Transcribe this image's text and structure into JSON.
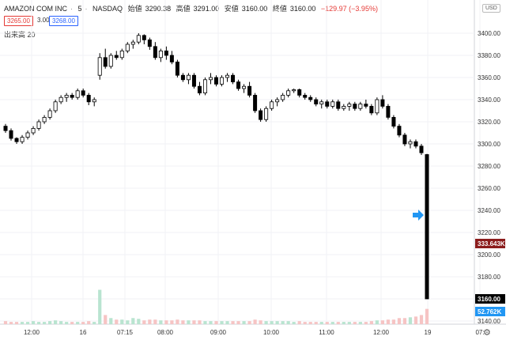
{
  "header": {
    "symbol": "AMAZON COM INC",
    "interval": "5",
    "exchange": "NASDAQ",
    "open_label": "始値",
    "open": "3290.38",
    "high_label": "高値",
    "high": "3291.00",
    "low_label": "安値",
    "low": "3160.00",
    "close_label": "終値",
    "close": "3160.00",
    "change": "−129.97 (−3.95%)",
    "bid": "3265.00",
    "spread": "3.00",
    "ask": "3268.00",
    "volume_label": "出来高",
    "volume_length": "20",
    "currency_button": "USD"
  },
  "colors": {
    "up_candle": "#ffffff",
    "down_candle": "#000000",
    "volume_up": "#b9e4d0",
    "volume_down": "#f6c4c4",
    "last_price_bg": "#000000",
    "volume_badge_bg": "#8b1c1c",
    "volume_ma_badge_bg": "#2196f3",
    "arrow": "#2196f3"
  },
  "icons": {
    "settings": "gear-icon",
    "marker": "arrow-right-icon"
  },
  "chart_data": {
    "type": "candlestick",
    "title": "AMAZON COM INC · 5 · NASDAQ",
    "y_ticks": [
      "3400.00",
      "3380.00",
      "3360.00",
      "3340.00",
      "3320.00",
      "3300.00",
      "3280.00",
      "3260.00",
      "3240.00",
      "3220.00",
      "3200.00",
      "3180.00",
      "3160.00",
      "3140.00"
    ],
    "x_ticks": [
      "12:00",
      "16",
      "07:15",
      "08:00",
      "09:00",
      "10:00",
      "11:00",
      "12:00",
      "19",
      "07:"
    ],
    "last_price_label": "3160.00",
    "volume_label": "333.643K",
    "volume_ma_label": "52.762K",
    "ylim": [
      3135,
      3407
    ],
    "grid": true,
    "candles": [
      [
        3316,
        3318,
        3310,
        3312
      ],
      [
        3312,
        3314,
        3303,
        3305
      ],
      [
        3305,
        3306,
        3300,
        3302
      ],
      [
        3302,
        3308,
        3300,
        3306
      ],
      [
        3306,
        3312,
        3304,
        3310
      ],
      [
        3310,
        3316,
        3308,
        3314
      ],
      [
        3314,
        3322,
        3312,
        3320
      ],
      [
        3320,
        3326,
        3318,
        3324
      ],
      [
        3324,
        3332,
        3322,
        3330
      ],
      [
        3330,
        3340,
        3328,
        3338
      ],
      [
        3338,
        3344,
        3336,
        3342
      ],
      [
        3342,
        3346,
        3338,
        3344
      ],
      [
        3344,
        3346,
        3340,
        3342
      ],
      [
        3342,
        3350,
        3340,
        3348
      ],
      [
        3348,
        3350,
        3342,
        3344
      ],
      [
        3344,
        3346,
        3335,
        3338
      ],
      [
        3338,
        3342,
        3334,
        3340
      ],
      [
        3362,
        3382,
        3358,
        3378
      ],
      [
        3378,
        3386,
        3368,
        3370
      ],
      [
        3370,
        3382,
        3368,
        3380
      ],
      [
        3380,
        3384,
        3376,
        3378
      ],
      [
        3378,
        3386,
        3376,
        3384
      ],
      [
        3384,
        3392,
        3382,
        3390
      ],
      [
        3390,
        3394,
        3386,
        3392
      ],
      [
        3392,
        3400,
        3390,
        3398
      ],
      [
        3398,
        3399,
        3390,
        3394
      ],
      [
        3394,
        3396,
        3385,
        3388
      ],
      [
        3388,
        3392,
        3376,
        3378
      ],
      [
        3378,
        3386,
        3374,
        3384
      ],
      [
        3384,
        3388,
        3376,
        3380
      ],
      [
        3380,
        3384,
        3372,
        3374
      ],
      [
        3374,
        3376,
        3360,
        3362
      ],
      [
        3362,
        3364,
        3356,
        3358
      ],
      [
        3358,
        3364,
        3354,
        3362
      ],
      [
        3362,
        3364,
        3350,
        3352
      ],
      [
        3352,
        3356,
        3344,
        3346
      ],
      [
        3346,
        3360,
        3344,
        3358
      ],
      [
        3358,
        3364,
        3354,
        3360
      ],
      [
        3360,
        3362,
        3352,
        3354
      ],
      [
        3354,
        3362,
        3352,
        3360
      ],
      [
        3360,
        3364,
        3356,
        3362
      ],
      [
        3362,
        3364,
        3354,
        3356
      ],
      [
        3356,
        3358,
        3348,
        3350
      ],
      [
        3350,
        3354,
        3346,
        3352
      ],
      [
        3352,
        3356,
        3342,
        3344
      ],
      [
        3344,
        3346,
        3328,
        3330
      ],
      [
        3330,
        3332,
        3320,
        3322
      ],
      [
        3322,
        3334,
        3320,
        3332
      ],
      [
        3332,
        3340,
        3330,
        3338
      ],
      [
        3338,
        3342,
        3334,
        3340
      ],
      [
        3340,
        3346,
        3338,
        3344
      ],
      [
        3344,
        3350,
        3342,
        3348
      ],
      [
        3348,
        3350,
        3346,
        3349
      ],
      [
        3349,
        3350,
        3342,
        3344
      ],
      [
        3344,
        3346,
        3340,
        3342
      ],
      [
        3342,
        3344,
        3338,
        3340
      ],
      [
        3340,
        3342,
        3334,
        3336
      ],
      [
        3336,
        3340,
        3332,
        3338
      ],
      [
        3338,
        3340,
        3332,
        3334
      ],
      [
        3334,
        3340,
        3332,
        3338
      ],
      [
        3338,
        3340,
        3330,
        3332
      ],
      [
        3332,
        3336,
        3330,
        3334
      ],
      [
        3334,
        3338,
        3330,
        3336
      ],
      [
        3336,
        3338,
        3330,
        3332
      ],
      [
        3332,
        3338,
        3330,
        3336
      ],
      [
        3336,
        3340,
        3332,
        3334
      ],
      [
        3334,
        3336,
        3326,
        3328
      ],
      [
        3328,
        3342,
        3326,
        3340
      ],
      [
        3340,
        3344,
        3332,
        3334
      ],
      [
        3334,
        3336,
        3322,
        3324
      ],
      [
        3324,
        3326,
        3314,
        3316
      ],
      [
        3316,
        3318,
        3306,
        3308
      ],
      [
        3308,
        3310,
        3298,
        3300
      ],
      [
        3300,
        3304,
        3296,
        3302
      ],
      [
        3302,
        3304,
        3296,
        3298
      ],
      [
        3298,
        3300,
        3290,
        3292
      ],
      [
        3290.38,
        3291,
        3160,
        3160
      ]
    ],
    "volumes": [
      4,
      3,
      3,
      3,
      3,
      4,
      3,
      3,
      4,
      5,
      4,
      3,
      3,
      3,
      3,
      4,
      3,
      45,
      12,
      8,
      6,
      6,
      5,
      8,
      7,
      5,
      6,
      6,
      5,
      5,
      5,
      6,
      5,
      5,
      5,
      5,
      4,
      4,
      4,
      4,
      4,
      4,
      4,
      4,
      4,
      6,
      5,
      4,
      4,
      4,
      4,
      4,
      3,
      4,
      3,
      3,
      3,
      3,
      3,
      3,
      3,
      3,
      3,
      3,
      3,
      3,
      4,
      5,
      5,
      6,
      6,
      8,
      8,
      9,
      10,
      12,
      20
    ],
    "volume_ylim": [
      0,
      60
    ]
  }
}
